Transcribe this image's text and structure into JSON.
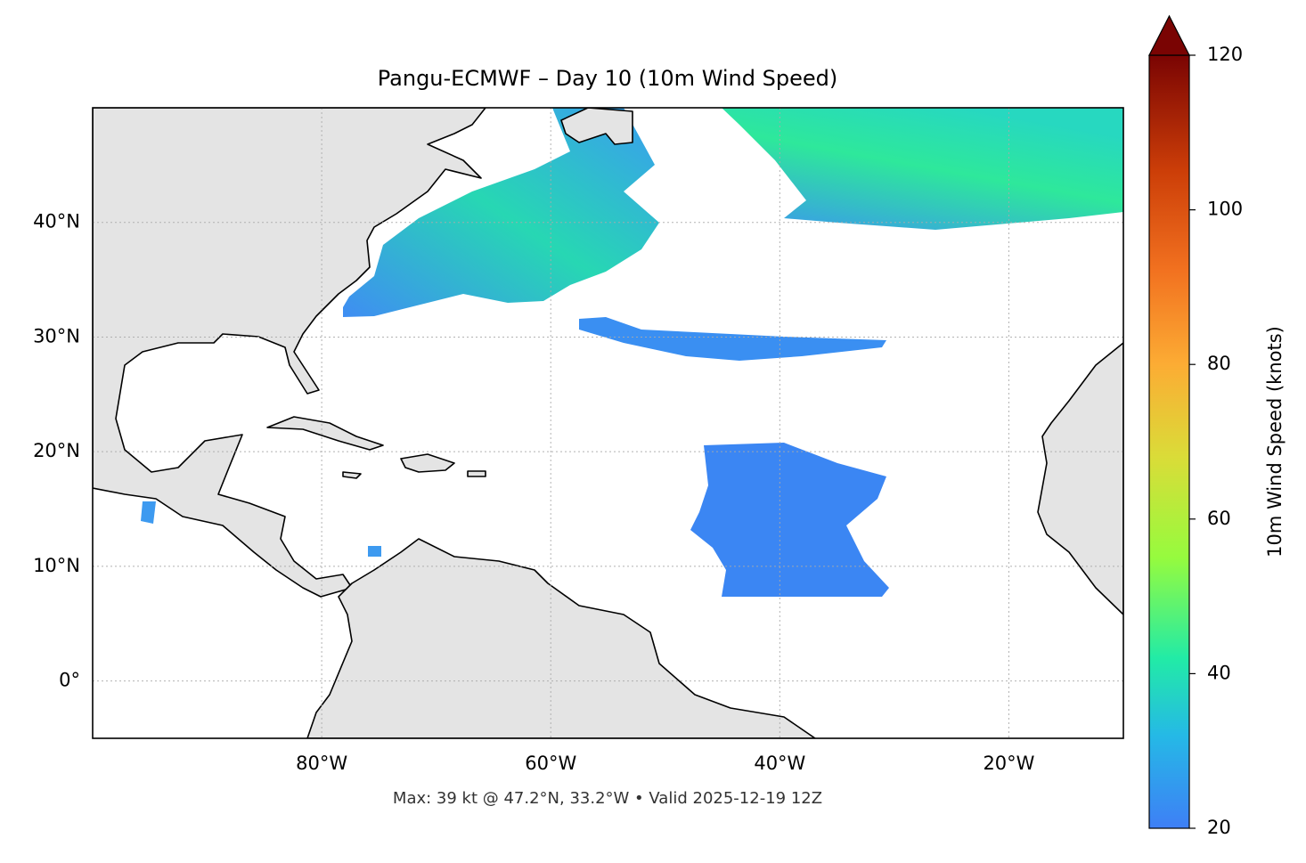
{
  "chart_data": {
    "type": "map",
    "title": "Pangu-ECMWF – Day 10 (10m Wind Speed)",
    "annotation": "Max: 39 kt @ 47.2°N, 33.2°W • Valid 2025-12-19 12Z",
    "xlim": [
      -100,
      -10
    ],
    "ylim": [
      -5,
      50
    ],
    "xticks": [
      {
        "value": -80,
        "label": "80°W"
      },
      {
        "value": -60,
        "label": "60°W"
      },
      {
        "value": -40,
        "label": "40°W"
      },
      {
        "value": -20,
        "label": "20°W"
      }
    ],
    "yticks": [
      {
        "value": 0,
        "label": "0°"
      },
      {
        "value": 10,
        "label": "10°N"
      },
      {
        "value": 20,
        "label": "20°N"
      },
      {
        "value": 30,
        "label": "30°N"
      },
      {
        "value": 40,
        "label": "40°N"
      }
    ],
    "grid": true,
    "colorbar": {
      "label": "10m Wind Speed (knots)",
      "lim": [
        20,
        120
      ],
      "ticks": [
        20,
        40,
        60,
        80,
        100,
        120
      ],
      "extend": "max"
    }
  }
}
